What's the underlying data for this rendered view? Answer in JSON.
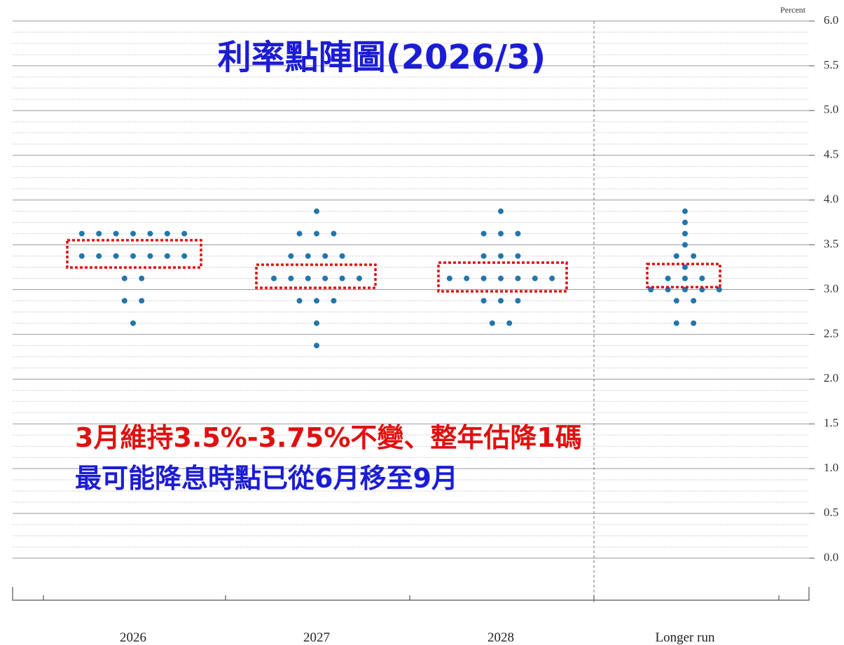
{
  "chart_data": {
    "type": "dot",
    "title": "利率點陣圖(2026/3)",
    "y_label": "Percent",
    "annotations": [
      "3月維持3.5%-3.75%不變、整年估降1碼",
      "最可能降息時點已從6月移至9月"
    ],
    "categories": [
      "2026",
      "2027",
      "2028",
      "Longer run"
    ],
    "color": "#2276ac",
    "dots": [
      {
        "levels": [
          3.625,
          3.375,
          3.125,
          2.875,
          2.625
        ],
        "counts": [
          7,
          7,
          2,
          2,
          1
        ]
      },
      {
        "levels": [
          3.875,
          3.625,
          3.375,
          3.125,
          2.875,
          2.625,
          2.375
        ],
        "counts": [
          1,
          3,
          4,
          6,
          3,
          1,
          1
        ]
      },
      {
        "levels": [
          3.875,
          3.625,
          3.375,
          3.125,
          2.875,
          2.625
        ],
        "counts": [
          1,
          3,
          3,
          7,
          3,
          2
        ]
      },
      {
        "levels": [
          3.875,
          3.75,
          3.625,
          3.5,
          3.375,
          3.25,
          3.125,
          3.0,
          2.875,
          2.625
        ],
        "counts": [
          1,
          1,
          1,
          1,
          2,
          1,
          3,
          5,
          2,
          2
        ]
      }
    ],
    "ylim": [
      0,
      6
    ],
    "yticks": [
      {
        "value": 0,
        "label": "0.0"
      },
      {
        "value": 0.5,
        "label": "0.5"
      },
      {
        "value": 1,
        "label": "1.0"
      },
      {
        "value": 1.5,
        "label": "1.5"
      },
      {
        "value": 2,
        "label": "2.0"
      },
      {
        "value": 2.5,
        "label": "2.5"
      },
      {
        "value": 3,
        "label": "3.0"
      },
      {
        "value": 3.5,
        "label": "3.5"
      },
      {
        "value": 4,
        "label": "4.0"
      },
      {
        "value": 4.5,
        "label": "4.5"
      },
      {
        "value": 5,
        "label": "5.0"
      },
      {
        "value": 5.5,
        "label": "5.5"
      },
      {
        "value": 6,
        "label": "6.0"
      }
    ],
    "grid": true
  }
}
